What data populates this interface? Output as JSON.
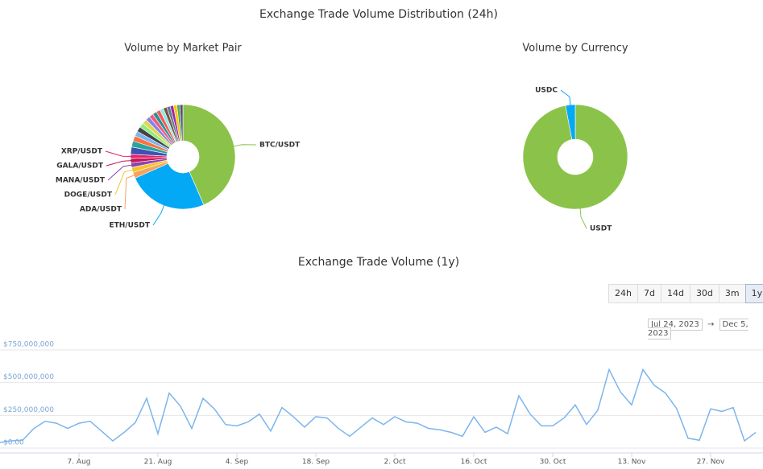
{
  "title": "Exchange Trade Volume Distribution (24h)",
  "chart_data": [
    {
      "type": "pie",
      "title": "Volume by Market Pair",
      "categories": [
        "BTC/USDT",
        "ETH/USDT",
        "ADA/USDT",
        "DOGE/USDT",
        "MANA/USDT",
        "GALA/USDT",
        "XRP/USDT",
        null,
        null,
        null,
        null,
        null,
        null,
        null,
        null,
        null,
        null,
        null,
        null,
        null,
        null,
        null,
        null,
        null,
        null
      ],
      "values": [
        42,
        24,
        1.8,
        1.5,
        1.4,
        1.3,
        1.2,
        2.2,
        1.8,
        1.6,
        1.5,
        1.5,
        1.4,
        1.4,
        1.3,
        1.3,
        1.2,
        1.2,
        1.1,
        1.1,
        1.0,
        1.0,
        1.0,
        0.9,
        0.9
      ],
      "colors": [
        "#8bc34a",
        "#03a9f4",
        "#f7a35c",
        "#f4c430",
        "#8e44ad",
        "#c2185b",
        "#e91e63",
        "#3f51b5",
        "#26a69a",
        "#ff7043",
        "#7cb5ec",
        "#434348",
        "#90ed7d",
        "#e4d354",
        "#8085e9",
        "#f15c80",
        "#2b908f",
        "#f45b5b",
        "#91e8e1",
        "#795548",
        "#607d8b",
        "#9c27b0",
        "#ffc107",
        "#4caf50",
        "#5d4a7e"
      ]
    },
    {
      "type": "pie",
      "title": "Volume by Currency",
      "categories": [
        "USDT",
        "USDC"
      ],
      "values": [
        97,
        3
      ],
      "colors": [
        "#8bc34a",
        "#03a9f4"
      ]
    },
    {
      "type": "line",
      "title": "Exchange Trade Volume (1y)",
      "x": [
        "2023-07-24",
        "2023-07-26",
        "2023-07-28",
        "2023-07-30",
        "2023-08-01",
        "2023-08-03",
        "2023-08-05",
        "2023-08-07",
        "2023-08-09",
        "2023-08-11",
        "2023-08-13",
        "2023-08-15",
        "2023-08-17",
        "2023-08-19",
        "2023-08-21",
        "2023-08-23",
        "2023-08-25",
        "2023-08-27",
        "2023-08-29",
        "2023-08-31",
        "2023-09-02",
        "2023-09-04",
        "2023-09-06",
        "2023-09-08",
        "2023-09-10",
        "2023-09-12",
        "2023-09-14",
        "2023-09-16",
        "2023-09-18",
        "2023-09-20",
        "2023-09-22",
        "2023-09-24",
        "2023-09-26",
        "2023-09-28",
        "2023-09-30",
        "2023-10-02",
        "2023-10-04",
        "2023-10-06",
        "2023-10-08",
        "2023-10-10",
        "2023-10-12",
        "2023-10-14",
        "2023-10-16",
        "2023-10-18",
        "2023-10-20",
        "2023-10-22",
        "2023-10-24",
        "2023-10-26",
        "2023-10-28",
        "2023-10-30",
        "2023-11-01",
        "2023-11-03",
        "2023-11-05",
        "2023-11-07",
        "2023-11-09",
        "2023-11-11",
        "2023-11-13",
        "2023-11-15",
        "2023-11-17",
        "2023-11-19",
        "2023-11-21",
        "2023-11-23",
        "2023-11-25",
        "2023-11-27",
        "2023-11-29",
        "2023-12-01",
        "2023-12-03",
        "2023-12-05"
      ],
      "values": [
        43000000,
        55000000,
        60000000,
        150000000,
        205000000,
        190000000,
        150000000,
        190000000,
        205000000,
        130000000,
        55000000,
        120000000,
        195000000,
        380000000,
        110000000,
        420000000,
        320000000,
        150000000,
        380000000,
        300000000,
        180000000,
        170000000,
        200000000,
        260000000,
        130000000,
        310000000,
        240000000,
        160000000,
        240000000,
        230000000,
        150000000,
        90000000,
        160000000,
        230000000,
        180000000,
        240000000,
        200000000,
        190000000,
        150000000,
        140000000,
        120000000,
        90000000,
        240000000,
        120000000,
        160000000,
        110000000,
        400000000,
        260000000,
        170000000,
        170000000,
        230000000,
        330000000,
        180000000,
        290000000,
        600000000,
        430000000,
        330000000,
        600000000,
        480000000,
        420000000,
        300000000,
        75000000,
        60000000,
        300000000,
        280000000,
        310000000,
        55000000,
        120000000
      ],
      "color": "#7cb5ec",
      "xlim": [
        "2023-07-24",
        "2023-12-05"
      ],
      "xticks": [
        {
          "value": "2023-08-07",
          "label": "7. Aug"
        },
        {
          "value": "2023-08-21",
          "label": "21. Aug"
        },
        {
          "value": "2023-09-04",
          "label": "4. Sep"
        },
        {
          "value": "2023-09-18",
          "label": "18. Sep"
        },
        {
          "value": "2023-10-02",
          "label": "2. Oct"
        },
        {
          "value": "2023-10-16",
          "label": "16. Oct"
        },
        {
          "value": "2023-10-30",
          "label": "30. Oct"
        },
        {
          "value": "2023-11-13",
          "label": "13. Nov"
        },
        {
          "value": "2023-11-27",
          "label": "27. Nov"
        }
      ],
      "ylim": [
        0,
        750000000
      ],
      "yticks": [
        {
          "value": 0,
          "label": "$0.00"
        },
        {
          "value": 250000000,
          "label": "$250,000,000"
        },
        {
          "value": 500000000,
          "label": "$500,000,000"
        },
        {
          "value": 750000000,
          "label": "$750,000,000"
        }
      ],
      "grid": true
    }
  ],
  "range_buttons": [
    "24h",
    "7d",
    "14d",
    "30d",
    "3m",
    "1y"
  ],
  "selected_range": 5,
  "date_range": {
    "from": "Jul 24, 2023",
    "separator": "→",
    "to": "Dec 5, 2023"
  }
}
